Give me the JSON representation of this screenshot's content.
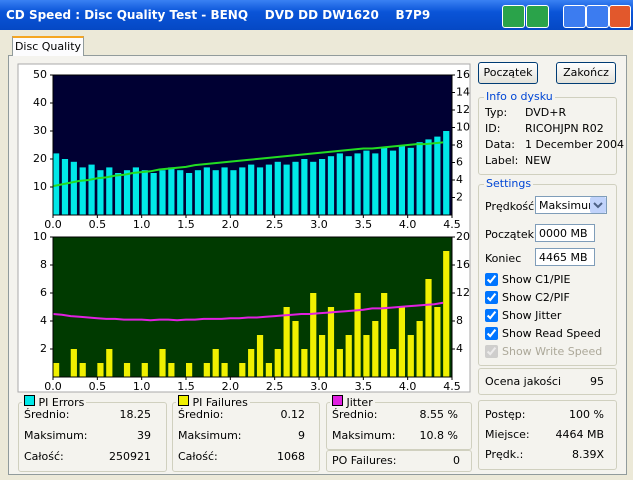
{
  "window": {
    "title": "CD Speed : Disc Quality Test - BENQ    DVD DD DW1620    B7P9"
  },
  "tab": "Disc Quality",
  "buttons": {
    "start": "Początek",
    "end": "Zakończ"
  },
  "disc_info": {
    "title": "Info o dysku",
    "rows": [
      [
        "Typ:",
        "DVD+R"
      ],
      [
        "ID:",
        "RICOHJPN R02"
      ],
      [
        "Data:",
        "1 December 2004"
      ],
      [
        "Label:",
        "NEW"
      ]
    ]
  },
  "settings": {
    "title": "Settings",
    "speed_label": "Prędkość",
    "speed": "Maksimum",
    "start_label": "Początek",
    "start": "0000 MB",
    "end_label": "Koniec",
    "end": "4465 MB",
    "checks": [
      {
        "label": "Show C1/PIE",
        "checked": true,
        "enabled": true
      },
      {
        "label": "Show C2/PIF",
        "checked": true,
        "enabled": true
      },
      {
        "label": "Show Jitter",
        "checked": true,
        "enabled": true
      },
      {
        "label": "Show Read Speed",
        "checked": true,
        "enabled": true
      },
      {
        "label": "Show Write Speed",
        "checked": true,
        "enabled": false
      }
    ]
  },
  "quality": {
    "label": "Ocena jakości",
    "value": "95"
  },
  "progress": [
    [
      "Postęp:",
      "100 %"
    ],
    [
      "Miejsce:",
      "4464 MB"
    ],
    [
      "Prędk.:",
      "8.39X"
    ]
  ],
  "pi_errors": [
    [
      "Średnio:",
      "18.25"
    ],
    [
      "Maksimum:",
      "39"
    ],
    [
      "Całość:",
      "250921"
    ]
  ],
  "pi_failures": [
    [
      "Średnio:",
      "0.12"
    ],
    [
      "Maksimum:",
      "9"
    ],
    [
      "Całość:",
      "1068"
    ]
  ],
  "jitter": [
    [
      "Średnio:",
      "8.55 %"
    ],
    [
      "Maksimum:",
      "10.8 %"
    ]
  ],
  "po_failures": [
    "PO Failures:",
    "0"
  ],
  "chart_data": [
    {
      "type": "bar",
      "background": "#000033",
      "xlim": [
        0,
        4.5
      ],
      "xticks": [
        {
          "value": 0,
          "label": "0.0"
        },
        0.5,
        {
          "value": 1,
          "label": "1.0"
        },
        1.5,
        {
          "value": 2,
          "label": "2.0"
        },
        2.5,
        {
          "value": 3,
          "label": "3.0"
        },
        3.5,
        {
          "value": 4,
          "label": "4.0"
        },
        4.5
      ],
      "ylim": [
        0,
        50
      ],
      "yticks": [
        10,
        20,
        30,
        40,
        50
      ],
      "y2lim": [
        0,
        16
      ],
      "y2ticks": [
        2,
        4,
        6,
        8,
        10,
        12,
        14,
        16
      ],
      "x": [
        0,
        0.1,
        0.2,
        0.3,
        0.4,
        0.5,
        0.6,
        0.7,
        0.8,
        0.9,
        1,
        1.1,
        1.2,
        1.3,
        1.4,
        1.5,
        1.6,
        1.7,
        1.8,
        1.9,
        2,
        2.1,
        2.2,
        2.3,
        2.4,
        2.5,
        2.6,
        2.7,
        2.8,
        2.9,
        3,
        3.1,
        3.2,
        3.3,
        3.4,
        3.5,
        3.6,
        3.7,
        3.8,
        3.9,
        4,
        4.1,
        4.2,
        4.3,
        4.4
      ],
      "series": [
        {
          "name": "PI Errors",
          "type": "bar",
          "color": "#00e8e8",
          "values": [
            22,
            20,
            19,
            17,
            18,
            16,
            17,
            15,
            16,
            17,
            16,
            15,
            16,
            17,
            16,
            15,
            16,
            17,
            16,
            17,
            16,
            17,
            18,
            17,
            18,
            19,
            18,
            19,
            20,
            19,
            20,
            21,
            22,
            21,
            22,
            23,
            22,
            24,
            23,
            25,
            24,
            26,
            27,
            28,
            30
          ]
        },
        {
          "type": "line",
          "axis": "y2",
          "color": "#22dd22",
          "values": [
            3.3,
            3.5,
            3.7,
            3.9,
            4.0,
            4.2,
            4.3,
            4.5,
            4.6,
            4.8,
            4.9,
            5.0,
            5.2,
            5.3,
            5.4,
            5.5,
            5.7,
            5.8,
            5.9,
            6.0,
            6.1,
            6.2,
            6.3,
            6.4,
            6.5,
            6.6,
            6.7,
            6.8,
            6.9,
            7.0,
            7.1,
            7.2,
            7.3,
            7.4,
            7.5,
            7.6,
            7.6,
            7.7,
            7.8,
            7.9,
            8.0,
            8.1,
            8.1,
            8.2,
            8.3
          ]
        }
      ]
    },
    {
      "type": "bar",
      "background": "#003a00",
      "xlim": [
        0,
        4.5
      ],
      "xticks": [
        {
          "value": 0,
          "label": "0.0"
        },
        0.5,
        {
          "value": 1,
          "label": "1.0"
        },
        1.5,
        {
          "value": 2,
          "label": "2.0"
        },
        2.5,
        {
          "value": 3,
          "label": "3.0"
        },
        3.5,
        {
          "value": 4,
          "label": "4.0"
        },
        4.5
      ],
      "ylim": [
        0,
        10
      ],
      "yticks": [
        2,
        4,
        6,
        8,
        10
      ],
      "y2lim": [
        0,
        20
      ],
      "y2ticks": [
        4,
        8,
        12,
        16,
        20
      ],
      "x": [
        0,
        0.1,
        0.2,
        0.3,
        0.4,
        0.5,
        0.6,
        0.7,
        0.8,
        0.9,
        1,
        1.1,
        1.2,
        1.3,
        1.4,
        1.5,
        1.6,
        1.7,
        1.8,
        1.9,
        2,
        2.1,
        2.2,
        2.3,
        2.4,
        2.5,
        2.6,
        2.7,
        2.8,
        2.9,
        3,
        3.1,
        3.2,
        3.3,
        3.4,
        3.5,
        3.6,
        3.7,
        3.8,
        3.9,
        4,
        4.1,
        4.2,
        4.3,
        4.4
      ],
      "series": [
        {
          "name": "PI Failures",
          "type": "bar",
          "color": "#f0f000",
          "values": [
            1,
            0,
            2,
            1,
            0,
            1,
            2,
            0,
            1,
            0,
            1,
            0,
            2,
            1,
            0,
            1,
            0,
            1,
            2,
            1,
            0,
            1,
            2,
            3,
            1,
            2,
            5,
            4,
            2,
            6,
            3,
            5,
            2,
            3,
            6,
            3,
            4,
            6,
            2,
            5,
            3,
            4,
            7,
            5,
            9
          ]
        },
        {
          "name": "Jitter",
          "type": "line",
          "axis": "y2",
          "color": "#e020e0",
          "values": [
            9.0,
            8.9,
            8.7,
            8.6,
            8.5,
            8.4,
            8.3,
            8.3,
            8.2,
            8.2,
            8.2,
            8.1,
            8.2,
            8.2,
            8.1,
            8.2,
            8.2,
            8.3,
            8.3,
            8.3,
            8.4,
            8.4,
            8.5,
            8.5,
            8.6,
            8.7,
            8.8,
            8.9,
            9.0,
            9.0,
            9.1,
            9.2,
            9.3,
            9.4,
            9.5,
            9.6,
            9.8,
            9.8,
            9.9,
            10.0,
            10.1,
            10.2,
            10.3,
            10.4,
            10.6
          ]
        }
      ]
    }
  ]
}
